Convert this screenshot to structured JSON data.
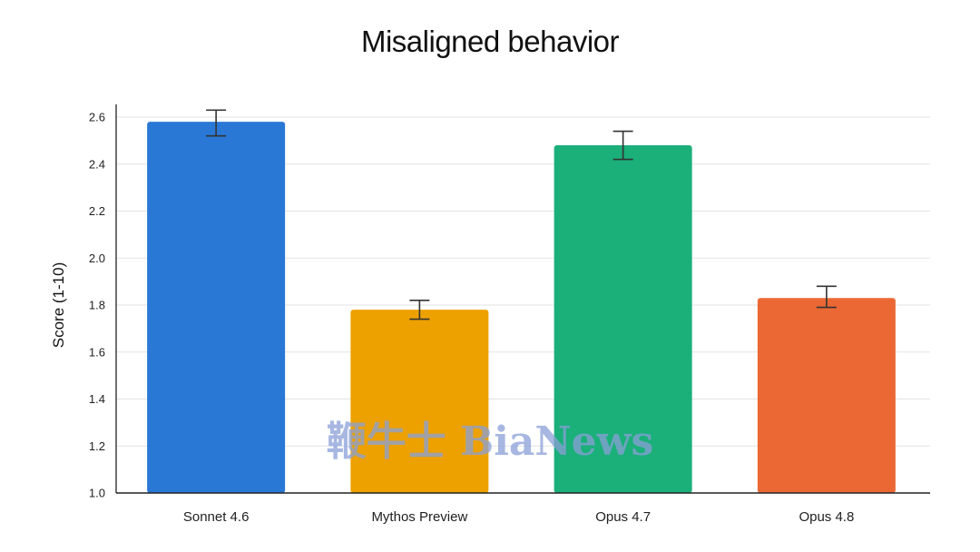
{
  "chart_data": {
    "type": "bar",
    "title": "Misaligned behavior",
    "ylabel": "Score (1-10)",
    "xlabel": "",
    "ylim": [
      1.0,
      2.6
    ],
    "yticks": [
      "1.0",
      "1.2",
      "1.4",
      "1.6",
      "1.8",
      "2.0",
      "2.2",
      "2.4",
      "2.6"
    ],
    "grid": true,
    "categories": [
      "Sonnet 4.6",
      "Mythos Preview",
      "Opus 4.7",
      "Opus 4.8"
    ],
    "values": [
      2.58,
      1.78,
      2.48,
      1.83
    ],
    "error_low": [
      2.52,
      1.74,
      2.42,
      1.79
    ],
    "error_high": [
      2.63,
      1.82,
      2.54,
      1.88
    ],
    "colors": [
      "#2a78d6",
      "#eda100",
      "#1baf7a",
      "#eb6834"
    ]
  },
  "watermark": {
    "text": "鞭牛士 BiaNews"
  }
}
